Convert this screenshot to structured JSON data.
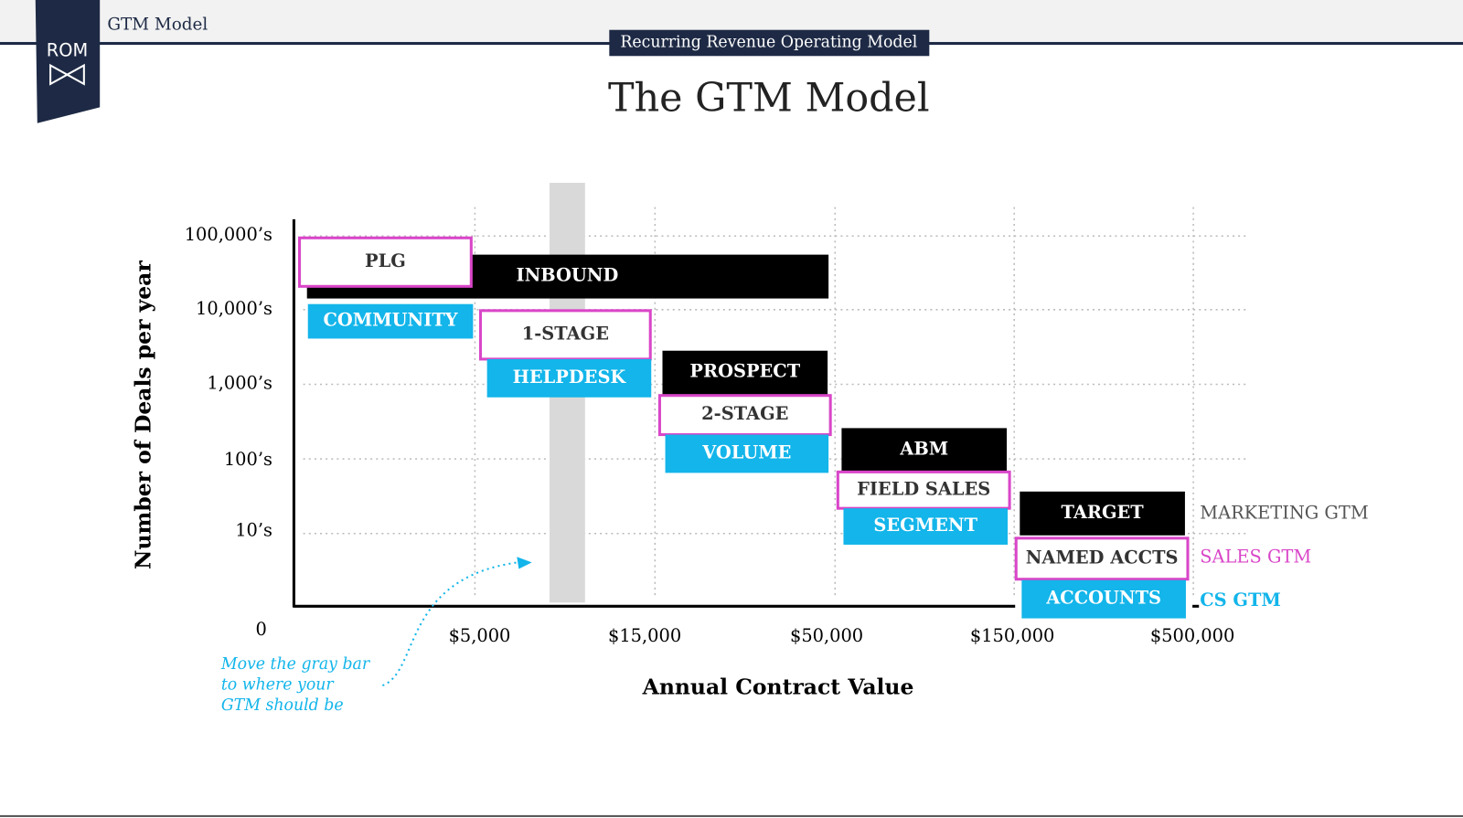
{
  "header": {
    "section": "GTM Model",
    "logo": "ROM",
    "banner": "Recurring Revenue Operating Model"
  },
  "title": "The GTM Model",
  "axes": {
    "y_label": "Number of Deals per year",
    "x_label": "Annual Contract Value",
    "y_ticks": [
      "100,000’s",
      "10,000’s",
      "1,000’s",
      "100’s",
      "10’s"
    ],
    "origin": "0",
    "x_ticks": [
      "$5,000",
      "$15,000",
      "$50,000",
      "$150,000",
      "$500,000"
    ]
  },
  "tracks": [
    {
      "label": "MARKETING GTM",
      "color": "#000000",
      "boxes": [
        "INBOUND",
        "PROSPECT",
        "ABM",
        "TARGET"
      ]
    },
    {
      "label": "SALES GTM",
      "color": "#d946c8",
      "boxes": [
        "PLG",
        "1-STAGE",
        "2-STAGE",
        "FIELD SALES",
        "NAMED ACCTS"
      ]
    },
    {
      "label": "CS GTM",
      "color": "#13b5ea",
      "boxes": [
        "COMMUNITY",
        "HELPDESK",
        "VOLUME",
        "SEGMENT",
        "ACCOUNTS"
      ]
    }
  ],
  "annotation": [
    "Move the gray bar",
    "to where your",
    "GTM should be"
  ]
}
